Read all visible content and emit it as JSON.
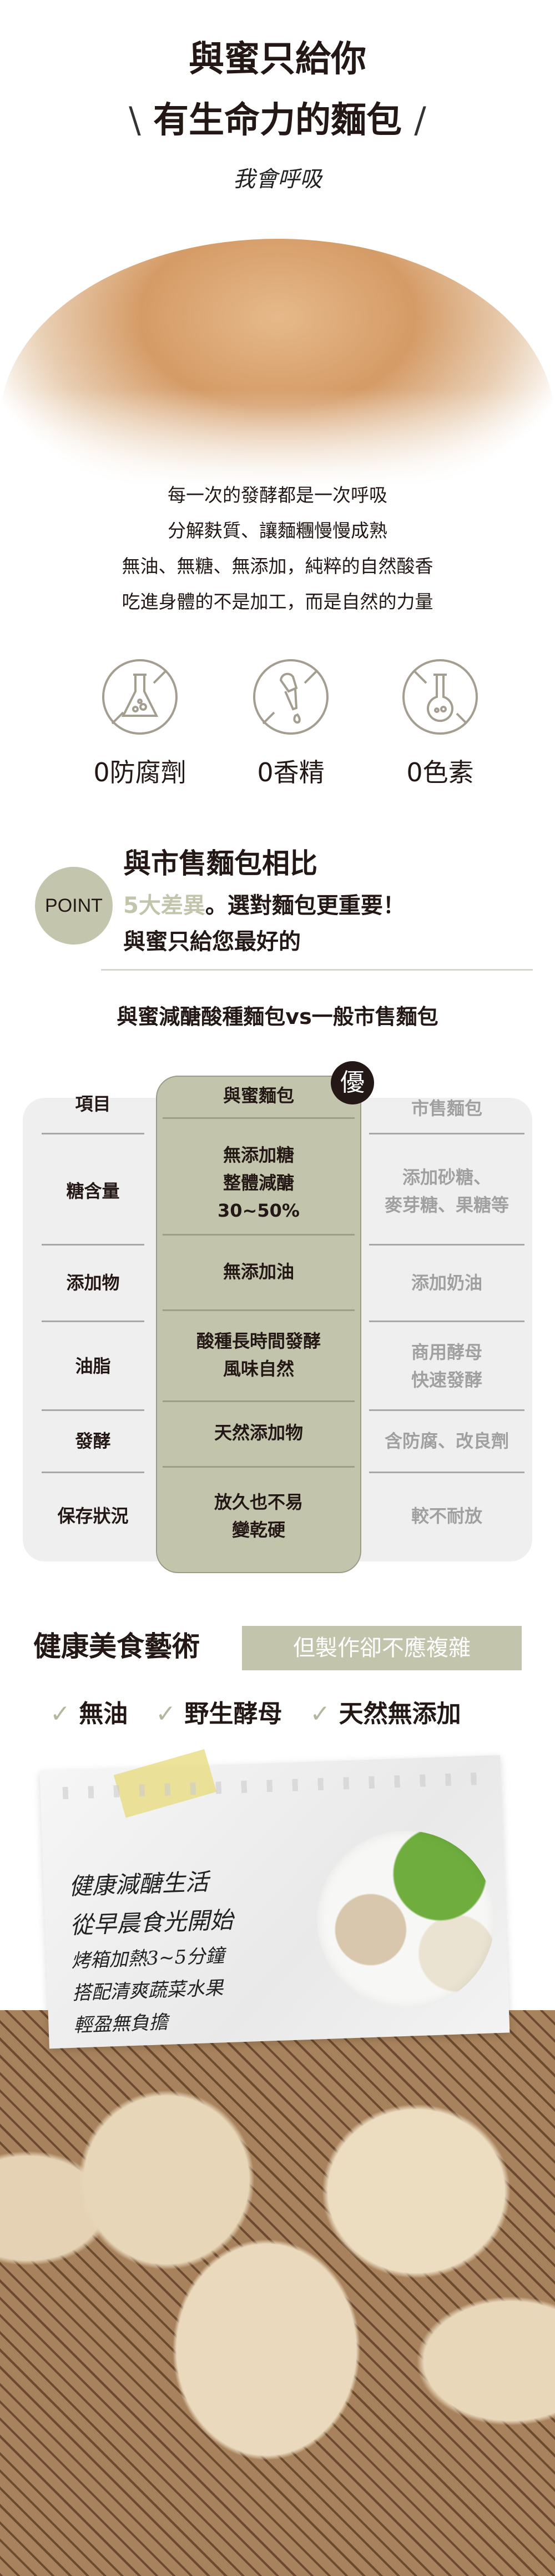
{
  "hero": {
    "title_line1": "與蜜只給你",
    "title_line2": "有生命力的麵包",
    "slash_left": "\\",
    "slash_right": "/",
    "handwriting": "我會呼吸"
  },
  "intro": {
    "lines": [
      "每一次的發酵都是一次呼吸",
      "分解麩質、讓麵糰慢慢成熟",
      "無油、無糖、無添加，純粹的自然酸香",
      "吃進身體的不是加工，而是自然的力量"
    ]
  },
  "badges": [
    {
      "icon": "no-flask-icon",
      "label": "0防腐劑"
    },
    {
      "icon": "no-dropper-icon",
      "label": "0香精"
    },
    {
      "icon": "no-round-flask-icon",
      "label": "0色素"
    }
  ],
  "point": {
    "badge": "POINT",
    "title": "與市售麵包相比",
    "highlight": "5大差異",
    "subtitle_rest": "。選對麵包更重要！",
    "line3": "與蜜只給您最好的"
  },
  "comparison": {
    "title": "與蜜減醣酸種麵包vs一般市售麵包",
    "badge": "優",
    "headers": [
      "項目",
      "與蜜麵包",
      "市售麵包"
    ],
    "rows": [
      [
        "糖含量",
        "無添加糖\n整體減醣\n30~50%",
        "添加砂糖、\n麥芽糖、果糖等"
      ],
      [
        "添加物",
        "無添加油",
        "添加奶油"
      ],
      [
        "油脂",
        "酸種長時間發酵\n風味自然",
        "商用酵母\n快速發酵"
      ],
      [
        "發酵",
        "天然添加物",
        "含防腐、改良劑"
      ],
      [
        "保存狀況",
        "放久也不易\n變乾硬",
        "較不耐放"
      ]
    ]
  },
  "art": {
    "title": "健康美食藝術",
    "tag": "但製作卻不應複雜",
    "checks": [
      "無油",
      "野生酵母",
      "天然無添加"
    ]
  },
  "note": {
    "lines": [
      "健康減醣生活",
      "從早晨食光開始",
      "烤箱加熱3~5分鐘",
      "搭配清爽蔬菜水果",
      "輕盈無負擔"
    ]
  },
  "colors": {
    "accent": "#c2c5ac",
    "text": "#231815",
    "muted": "#a0a0a0",
    "icon": "#a39e8f"
  }
}
